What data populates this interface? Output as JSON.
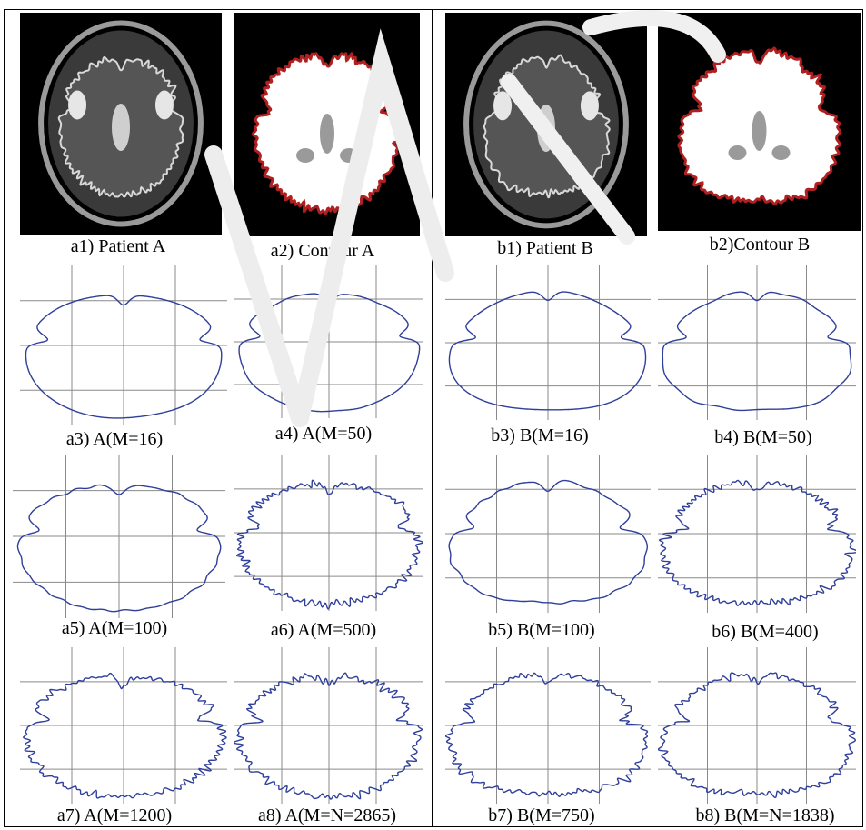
{
  "figure": {
    "panels": [
      {
        "id": "a1",
        "caption": "a1) Patient A",
        "kind": "mri",
        "tint": "none"
      },
      {
        "id": "a2",
        "caption": "a2) Contour A",
        "kind": "mask",
        "tint": "red-contour"
      },
      {
        "id": "b1",
        "caption": "b1) Patient B",
        "kind": "mri",
        "tint": "none"
      },
      {
        "id": "b2",
        "caption": "b2)Contour B",
        "kind": "mask",
        "tint": "red-contour"
      },
      {
        "id": "a3",
        "caption": "a3) A(M=16)",
        "kind": "contour",
        "detail": 16
      },
      {
        "id": "a4",
        "caption": "a4) A(M=50)",
        "kind": "contour",
        "detail": 50
      },
      {
        "id": "b3",
        "caption": "b3) B(M=16)",
        "kind": "contour",
        "detail": 16
      },
      {
        "id": "b4",
        "caption": "b4) B(M=50)",
        "kind": "contour",
        "detail": 50
      },
      {
        "id": "a5",
        "caption": "a5) A(M=100)",
        "kind": "contour",
        "detail": 100
      },
      {
        "id": "a6",
        "caption": "a6) A(M=500)",
        "kind": "contour",
        "detail": 500
      },
      {
        "id": "b5",
        "caption": "b5) B(M=100)",
        "kind": "contour",
        "detail": 100
      },
      {
        "id": "b6",
        "caption": "b6) B(M=400)",
        "kind": "contour",
        "detail": 400
      },
      {
        "id": "a7",
        "caption": "a7) A(M=1200)",
        "kind": "contour",
        "detail": 1200
      },
      {
        "id": "a8",
        "caption": "a8) A(M=N=2865)",
        "kind": "contour",
        "detail": 2865
      },
      {
        "id": "b7",
        "caption": "b7) B(M=750)",
        "kind": "contour",
        "detail": 750
      },
      {
        "id": "b8",
        "caption": "b8) B(M=N=1838)",
        "kind": "contour",
        "detail": 1838
      }
    ],
    "colors": {
      "contour": "#2f3f9a",
      "grid": "#8a8a8a",
      "mask_edge": "#b02020",
      "mri_bg": "#000000"
    }
  }
}
